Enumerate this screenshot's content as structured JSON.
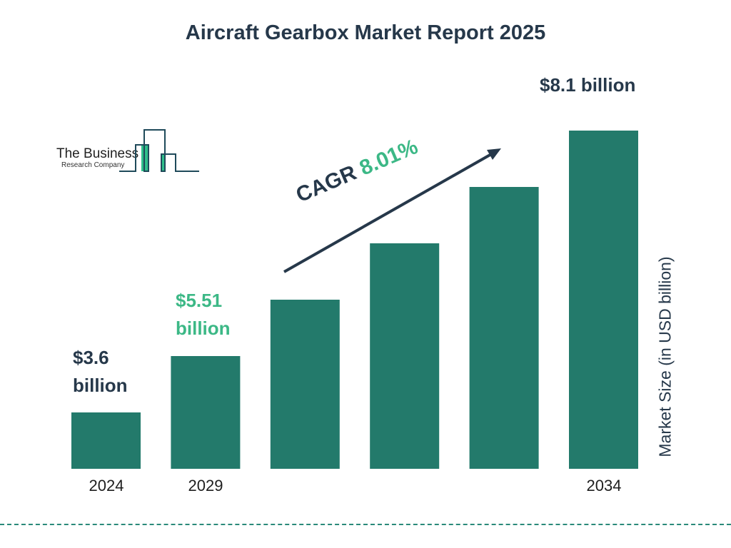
{
  "chart_data": {
    "type": "bar",
    "title": "Aircraft Gearbox Market Report 2025",
    "categories": [
      "2024",
      "2029",
      "",
      "",
      "",
      "2034"
    ],
    "values": [
      3.6,
      5.51,
      null,
      null,
      null,
      8.1
    ],
    "data_labels": [
      "$3.6 billion",
      "$5.51 billion",
      "",
      "",
      "",
      "$8.1 billion"
    ],
    "ylabel": "Market Size (in USD billion)",
    "xlabel": "",
    "annotation": {
      "cagr_label": "CAGR",
      "cagr_value": "8.01%"
    },
    "grid": false,
    "colors": {
      "bar": "#237a6b",
      "text": "#26384a",
      "highlight": "#3cb886"
    }
  },
  "labels": {
    "v2024_a": "$3.6",
    "v2024_b": "billion",
    "v2029_a": "$5.51",
    "v2029_b": "billion",
    "v2034": "$8.1 billion"
  },
  "logo": {
    "line1": "The Business",
    "line2": "Research Company"
  }
}
